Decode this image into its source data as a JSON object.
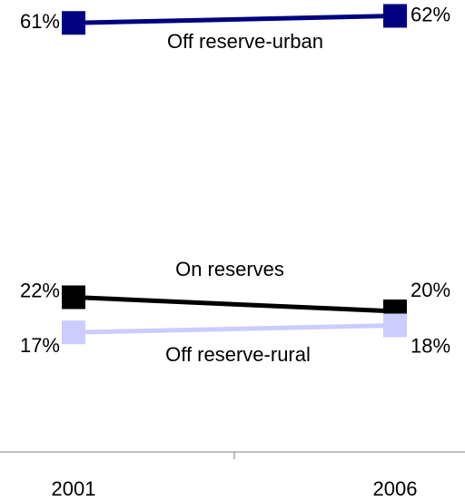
{
  "chart_data": {
    "type": "line",
    "categories": [
      "2001",
      "2006"
    ],
    "series": [
      {
        "name": "Off reserve-urban",
        "color": "#000080",
        "values": [
          61,
          62
        ],
        "value_labels": [
          "61%",
          "62%"
        ]
      },
      {
        "name": "On reserves",
        "color": "#000000",
        "values": [
          22,
          20
        ],
        "value_labels": [
          "22%",
          "20%"
        ]
      },
      {
        "name": "Off reserve-rural",
        "color": "#ccccff",
        "values": [
          17,
          18
        ],
        "value_labels": [
          "17%",
          "18%"
        ]
      }
    ],
    "ylim": [
      0,
      64
    ]
  }
}
